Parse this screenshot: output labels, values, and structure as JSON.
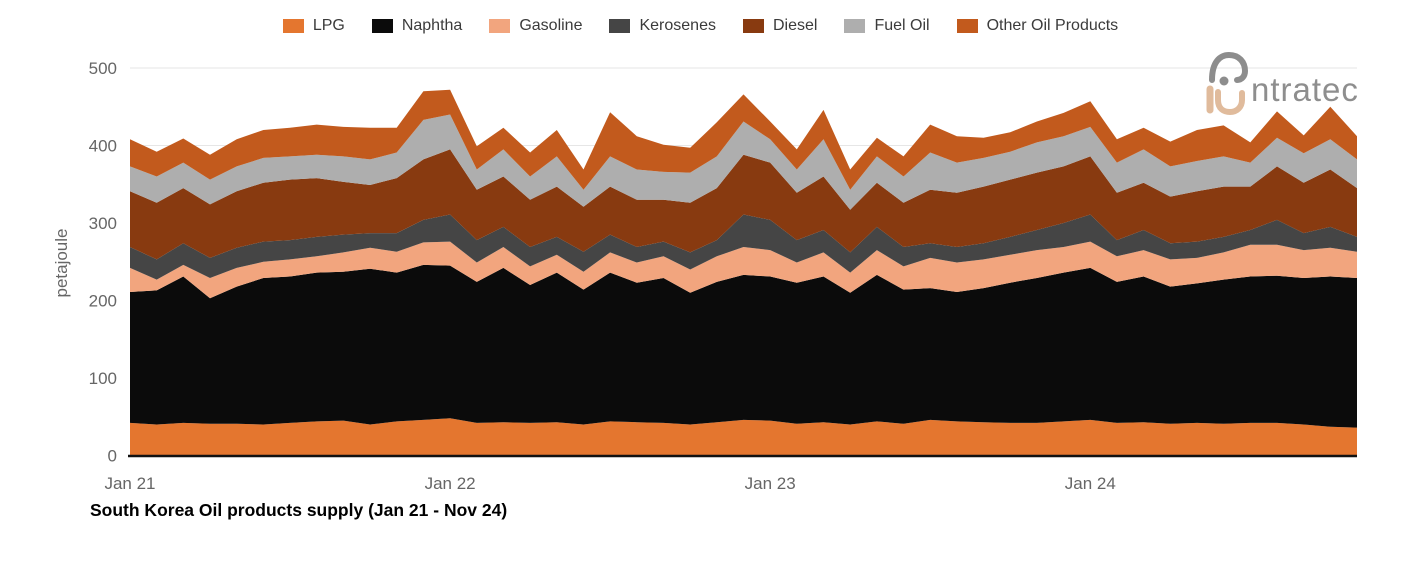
{
  "title": "South Korea Oil products supply (Jan 21 - Nov 24)",
  "logo": {
    "text": "ntratec",
    "display_word": "intratec"
  },
  "chart_data": {
    "type": "area",
    "stacked": true,
    "title": "South Korea Oil products supply (Jan 21 - Nov 24)",
    "xlabel": "",
    "ylabel": "petajoule",
    "ylim": [
      0,
      500
    ],
    "yticks": [
      0,
      100,
      200,
      300,
      400,
      500
    ],
    "grid": false,
    "legend_position": "top",
    "x_axis_ticks": [
      "Jan 21",
      "Jan 22",
      "Jan 23",
      "Jan 24"
    ],
    "x": [
      "Jan 21",
      "Feb 21",
      "Mar 21",
      "Apr 21",
      "May 21",
      "Jun 21",
      "Jul 21",
      "Aug 21",
      "Sep 21",
      "Oct 21",
      "Nov 21",
      "Dec 21",
      "Jan 22",
      "Feb 22",
      "Mar 22",
      "Apr 22",
      "May 22",
      "Jun 22",
      "Jul 22",
      "Aug 22",
      "Sep 22",
      "Oct 22",
      "Nov 22",
      "Dec 22",
      "Jan 23",
      "Feb 23",
      "Mar 23",
      "Apr 23",
      "May 23",
      "Jun 23",
      "Jul 23",
      "Aug 23",
      "Sep 23",
      "Oct 23",
      "Nov 23",
      "Dec 23",
      "Jan 24",
      "Feb 24",
      "Mar 24",
      "Apr 24",
      "May 24",
      "Jun 24",
      "Jul 24",
      "Aug 24",
      "Sep 24",
      "Oct 24",
      "Nov 24"
    ],
    "series": [
      {
        "name": "LPG",
        "color": "#E4762F",
        "values": [
          42,
          40,
          42,
          41,
          41,
          40,
          42,
          44,
          45,
          40,
          44,
          46,
          48,
          42,
          43,
          42,
          43,
          40,
          44,
          43,
          42,
          40,
          43,
          46,
          45,
          41,
          43,
          40,
          44,
          41,
          46,
          44,
          43,
          42,
          42,
          44,
          46,
          42,
          43,
          41,
          42,
          41,
          42,
          42,
          40,
          37,
          36
        ]
      },
      {
        "name": "Naphtha",
        "color": "#0B0B0B",
        "values": [
          169,
          173,
          189,
          162,
          177,
          189,
          189,
          192,
          192,
          201,
          192,
          200,
          197,
          182,
          199,
          178,
          193,
          174,
          192,
          180,
          187,
          170,
          181,
          187,
          186,
          182,
          188,
          170,
          189,
          173,
          170,
          167,
          173,
          181,
          187,
          192,
          196,
          182,
          188,
          177,
          180,
          186,
          189,
          190,
          189,
          194,
          193
        ]
      },
      {
        "name": "Gasoline",
        "color": "#F2A57E",
        "values": [
          31,
          14,
          15,
          26,
          24,
          21,
          22,
          21,
          25,
          27,
          27,
          29,
          31,
          25,
          27,
          24,
          23,
          23,
          26,
          26,
          28,
          30,
          33,
          36,
          34,
          26,
          31,
          26,
          32,
          30,
          39,
          38,
          37,
          36,
          36,
          33,
          34,
          33,
          34,
          35,
          33,
          35,
          41,
          40,
          36,
          37,
          34
        ]
      },
      {
        "name": "Kerosenes",
        "color": "#454545",
        "values": [
          27,
          26,
          28,
          26,
          26,
          26,
          25,
          25,
          23,
          19,
          24,
          29,
          35,
          29,
          26,
          25,
          23,
          26,
          23,
          20,
          19,
          22,
          21,
          42,
          39,
          29,
          29,
          26,
          30,
          25,
          19,
          20,
          21,
          23,
          26,
          31,
          35,
          21,
          26,
          21,
          21,
          20,
          19,
          32,
          22,
          27,
          19
        ]
      },
      {
        "name": "Diesel",
        "color": "#883A10",
        "values": [
          72,
          73,
          71,
          69,
          73,
          76,
          78,
          76,
          68,
          62,
          71,
          78,
          84,
          65,
          65,
          61,
          65,
          58,
          62,
          61,
          54,
          64,
          67,
          77,
          74,
          61,
          69,
          55,
          57,
          57,
          69,
          70,
          73,
          74,
          74,
          73,
          75,
          61,
          61,
          60,
          65,
          65,
          56,
          69,
          65,
          74,
          63
        ]
      },
      {
        "name": "Fuel Oil",
        "color": "#AEAEAE",
        "values": [
          32,
          34,
          33,
          32,
          32,
          32,
          30,
          30,
          33,
          33,
          33,
          51,
          45,
          26,
          35,
          30,
          39,
          22,
          39,
          39,
          36,
          39,
          41,
          43,
          30,
          30,
          48,
          26,
          34,
          34,
          48,
          39,
          37,
          36,
          39,
          39,
          38,
          39,
          43,
          39,
          39,
          39,
          31,
          37,
          38,
          39,
          37
        ]
      },
      {
        "name": "Other Oil Products",
        "color": "#C25A1D",
        "values": [
          35,
          32,
          31,
          32,
          35,
          36,
          37,
          39,
          38,
          41,
          32,
          37,
          32,
          30,
          28,
          31,
          34,
          26,
          57,
          43,
          35,
          32,
          44,
          35,
          23,
          26,
          38,
          26,
          24,
          26,
          36,
          34,
          26,
          25,
          27,
          30,
          33,
          30,
          28,
          32,
          40,
          40,
          26,
          34,
          23,
          42,
          30
        ]
      }
    ]
  }
}
